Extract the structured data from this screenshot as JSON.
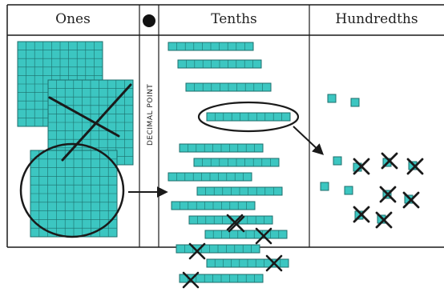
{
  "table": {
    "headers": {
      "ones": "Ones",
      "tenths": "Tenths",
      "hundredths": "Hundredths"
    },
    "decimal_point_label": "DECIMAL POINT"
  },
  "colors": {
    "block_fill": "#3cc6c1",
    "block_stroke": "#1c6e6b",
    "line": "#1a1a1a"
  },
  "counts": {
    "ones_flats": 3,
    "ones_crossed": 2,
    "tenths_rods": 19,
    "tenths_crossed": 6,
    "hundredths_units": 13,
    "hundredths_crossed": 8
  }
}
